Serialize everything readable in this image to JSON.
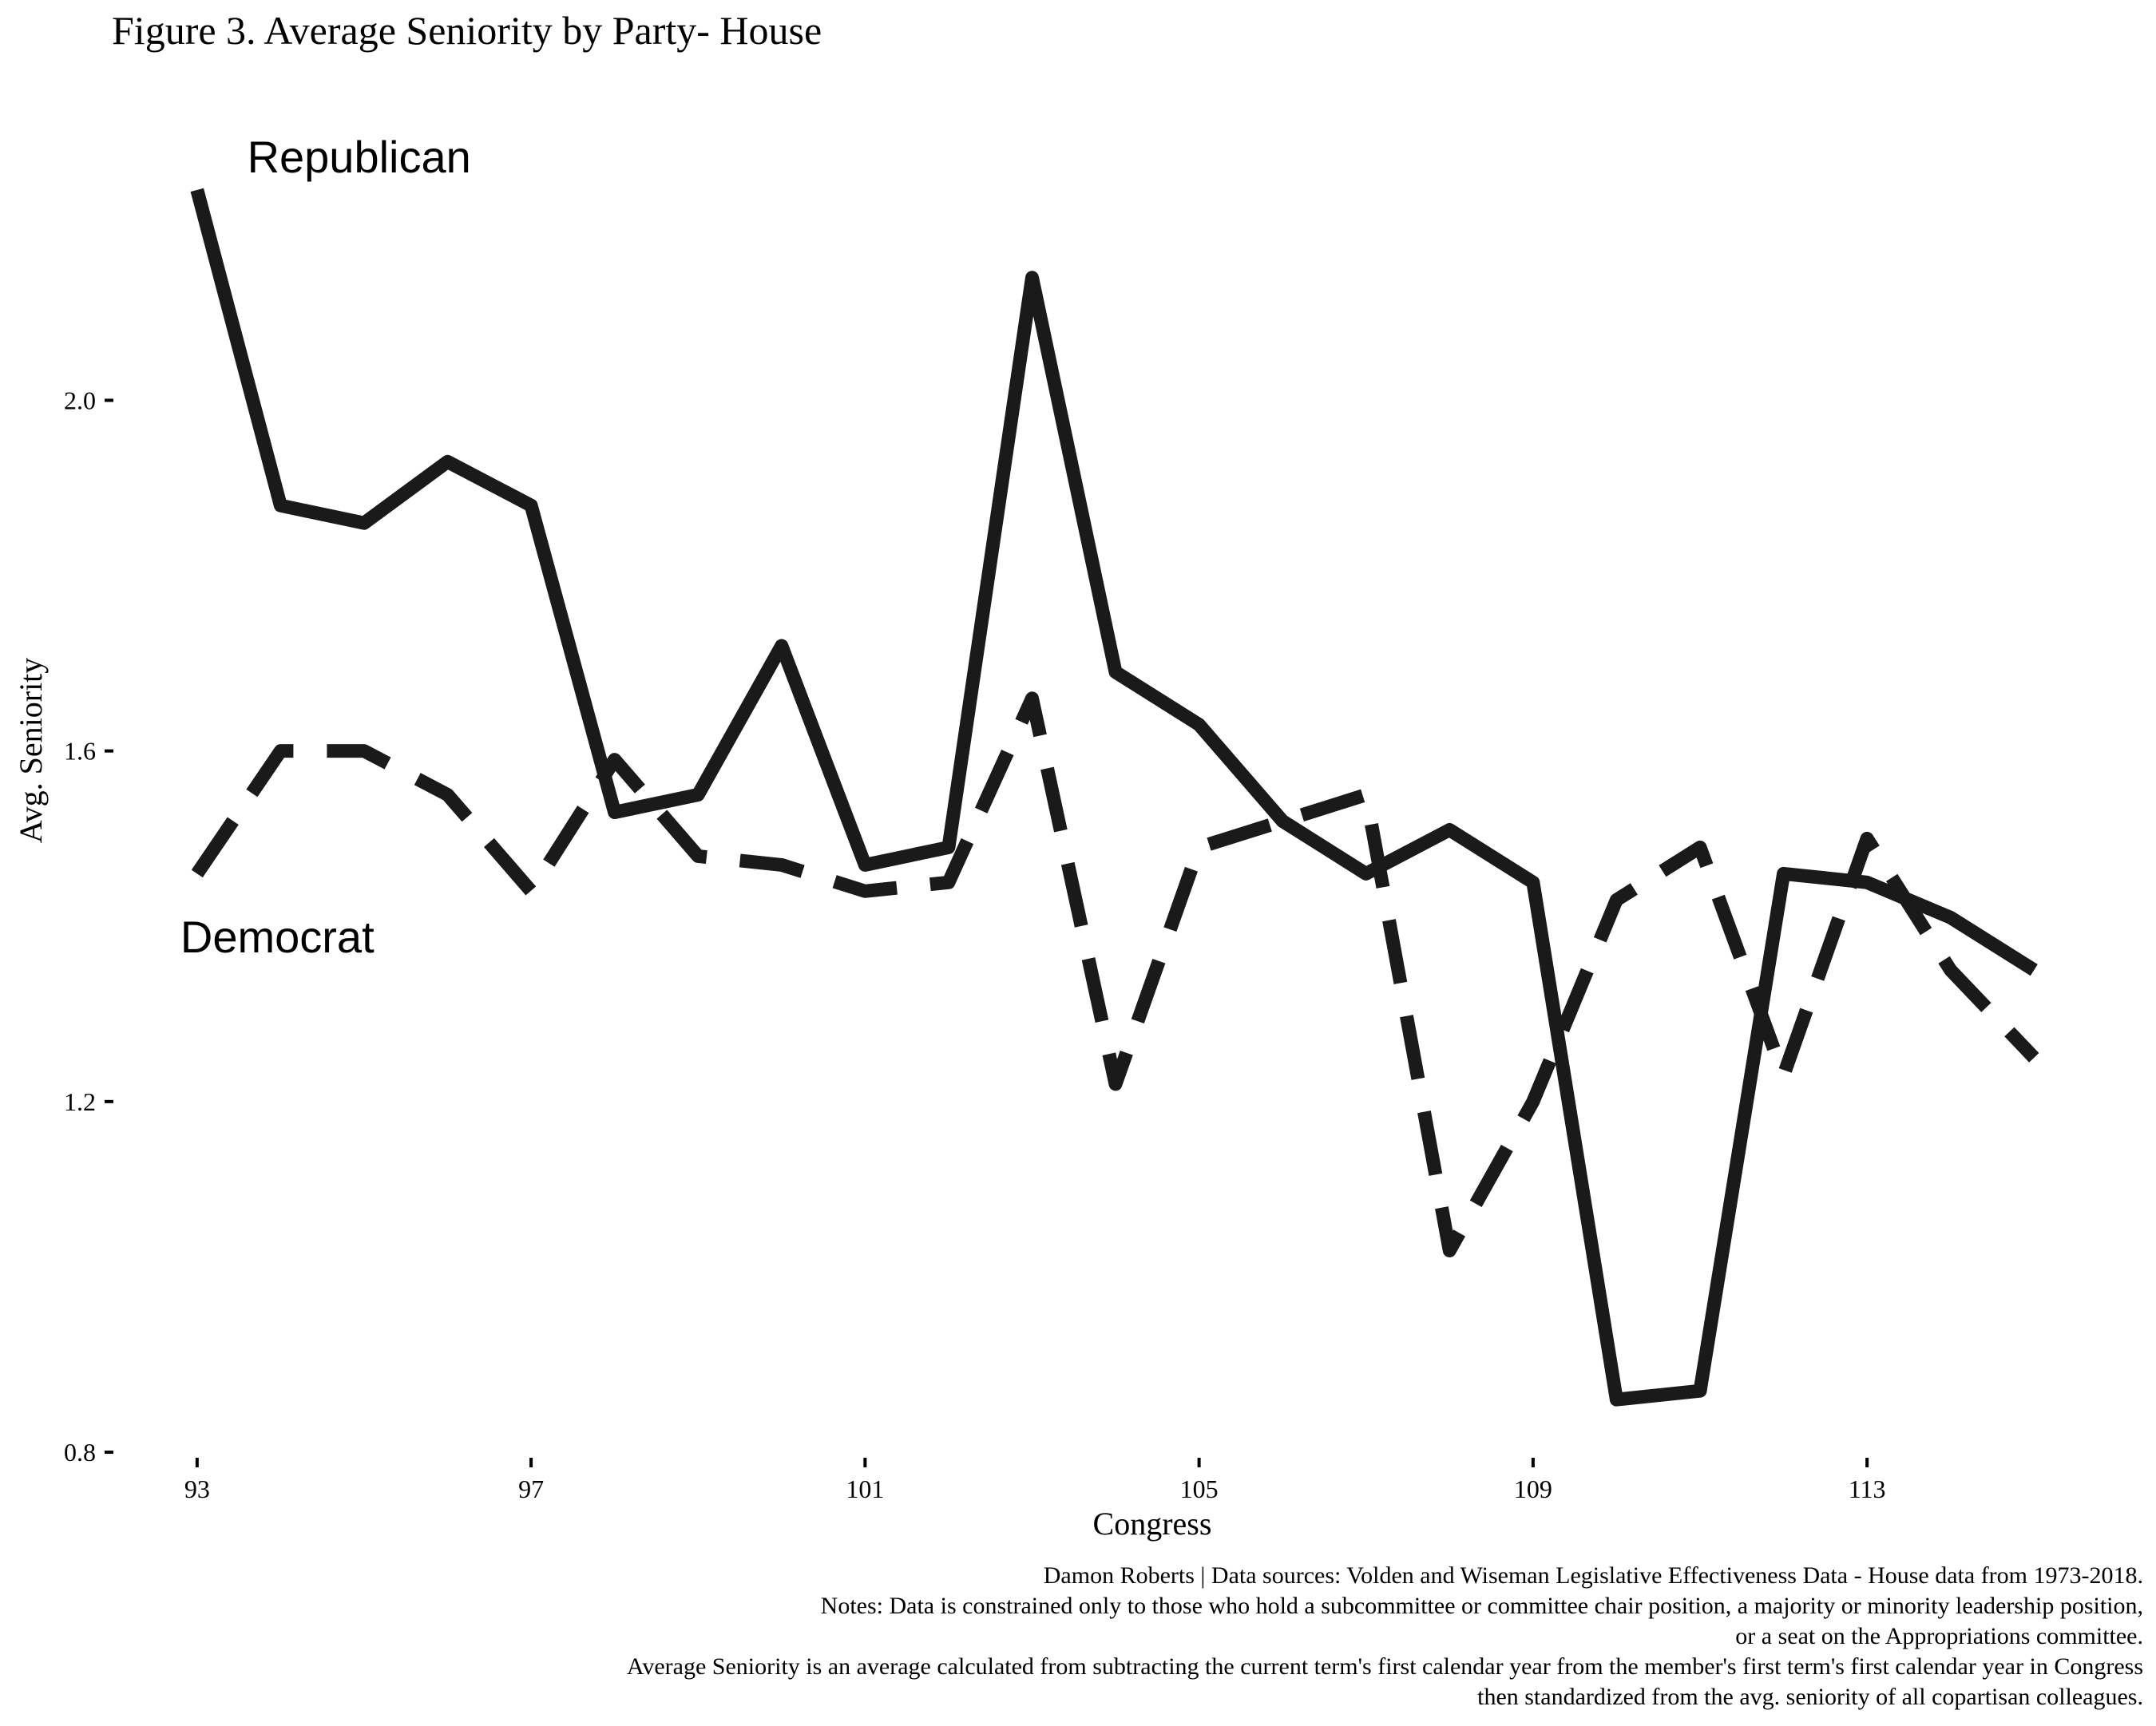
{
  "chart_data": {
    "type": "line",
    "title": "Figure 3. Average Seniority by Party- House",
    "xlabel": "Congress",
    "ylabel": "Avg. Seniority",
    "x": [
      93,
      94,
      95,
      96,
      97,
      98,
      99,
      100,
      101,
      102,
      103,
      104,
      105,
      106,
      107,
      108,
      109,
      110,
      111,
      112,
      113,
      114,
      115
    ],
    "xticks": [
      93,
      97,
      101,
      105,
      109,
      113
    ],
    "xlim": [
      92.6,
      115.6
    ],
    "yticks": [
      0.8,
      1.2,
      1.6,
      2.0
    ],
    "ylim": [
      0.79,
      2.27
    ],
    "grid": false,
    "legend": "none",
    "series": [
      {
        "name": "Republican",
        "style": "solid",
        "color": "#1a1a1a",
        "values": [
          2.24,
          1.88,
          1.86,
          1.93,
          1.88,
          1.53,
          1.55,
          1.72,
          1.47,
          1.49,
          2.14,
          1.69,
          1.63,
          1.52,
          1.46,
          1.51,
          1.45,
          0.86,
          0.87,
          1.46,
          1.45,
          1.41,
          1.35
        ]
      },
      {
        "name": "Democrat",
        "style": "dashed",
        "color": "#1a1a1a",
        "values": [
          1.46,
          1.6,
          1.6,
          1.55,
          1.44,
          1.59,
          1.48,
          1.47,
          1.44,
          1.45,
          1.66,
          1.22,
          1.49,
          1.52,
          1.55,
          1.03,
          1.2,
          1.43,
          1.49,
          1.23,
          1.5,
          1.35,
          1.25
        ]
      }
    ],
    "annotations": [
      {
        "text": "Republican",
        "x": 93.6,
        "y": 2.26
      },
      {
        "text": "Democrat",
        "x": 92.8,
        "y": 1.37
      }
    ],
    "caption": [
      "Damon Roberts | Data sources: Volden and Wiseman Legislative Effectiveness Data - House data from 1973-2018.",
      "Notes: Data is constrained only to those who hold a subcommittee or committee chair position, a majority or minority leadership position,",
      "or a seat on the Appropriations committee.",
      "Average Seniority is an average calculated from subtracting the current term's first calendar year from the member's first term's first calendar year in Congress",
      "then standardized from the avg. seniority of all copartisan colleagues."
    ]
  }
}
